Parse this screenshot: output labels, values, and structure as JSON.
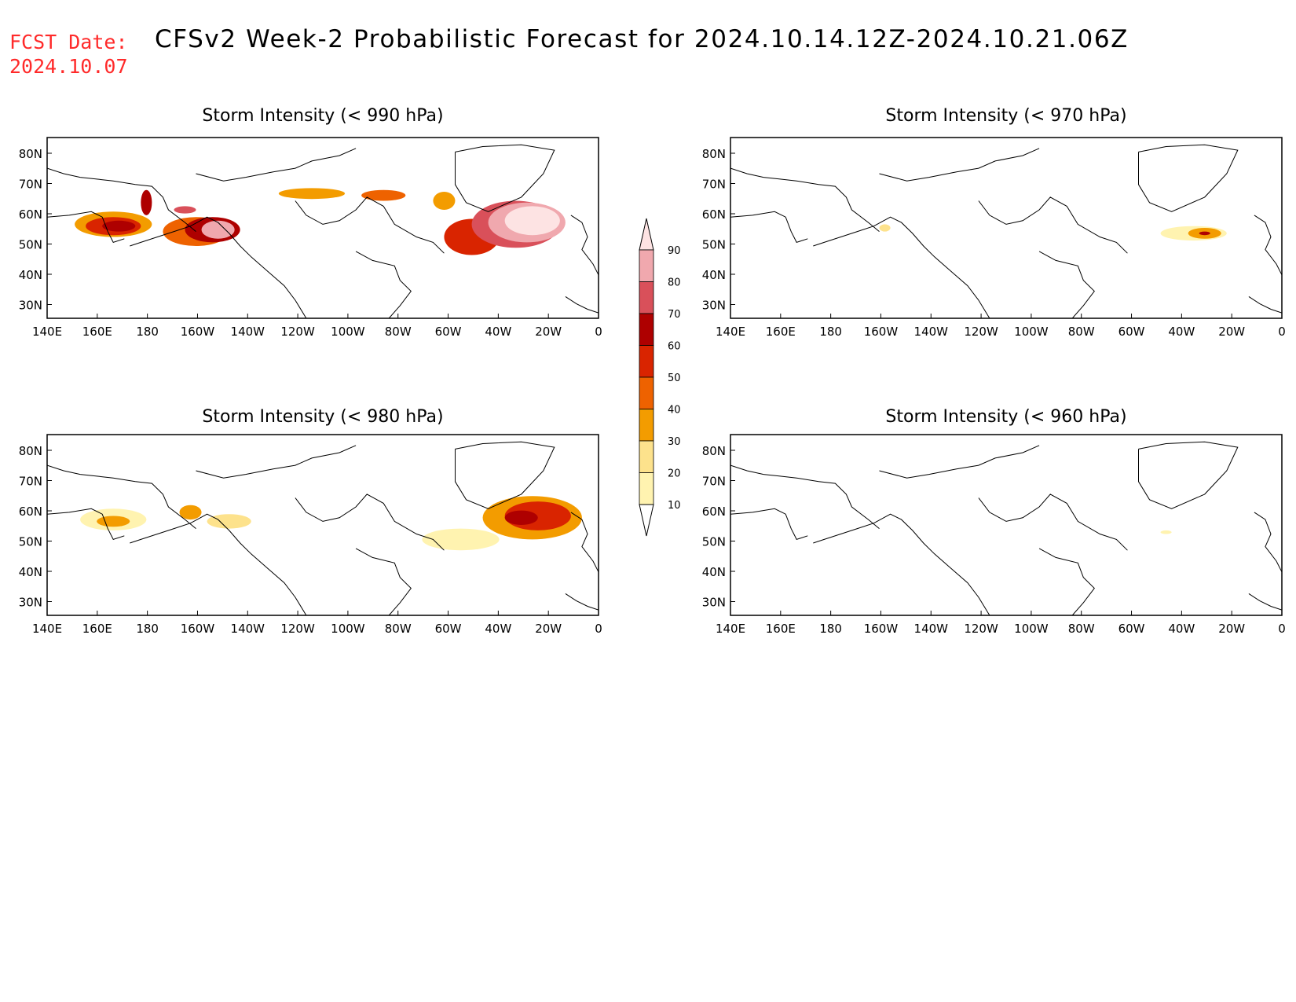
{
  "header": {
    "fcst_label": "FCST Date:",
    "fcst_date": "2024.10.07",
    "title": "CFSv2 Week-2 Probabilistic Forecast for 2024.10.14.12Z-2024.10.21.06Z"
  },
  "axes": {
    "lon_labels": [
      "140E",
      "160E",
      "180",
      "160W",
      "140W",
      "120W",
      "100W",
      "80W",
      "60W",
      "40W",
      "20W",
      "0"
    ],
    "lat_labels": [
      "80N",
      "70N",
      "60N",
      "50N",
      "40N",
      "30N"
    ]
  },
  "colorbar": {
    "levels": [
      "10",
      "20",
      "30",
      "40",
      "50",
      "60",
      "70",
      "80",
      "90"
    ],
    "colors": [
      "#ffffff",
      "#fff3b0",
      "#fde28c",
      "#f39c00",
      "#ee6200",
      "#d92400",
      "#ae0000",
      "#d9505a",
      "#f0a8ae",
      "#fde3e3"
    ]
  },
  "panels": [
    {
      "title": "Storm Intensity (< 990 hPa)"
    },
    {
      "title": "Storm Intensity (< 970 hPa)"
    },
    {
      "title": "Storm Intensity (< 980 hPa)"
    },
    {
      "title": "Storm Intensity (< 960 hPa)"
    }
  ]
}
